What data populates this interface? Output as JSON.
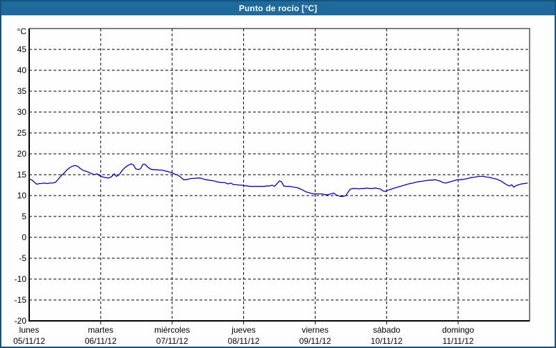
{
  "window": {
    "title": "Punto de rocío [°C]"
  },
  "colors": {
    "titlebar_bg": "#1f6a9d",
    "titlebar_text": "#ffffff",
    "page_border": "#15537e",
    "background": "#fefefe",
    "plot_border": "#000000",
    "grid": "#000000",
    "label_text": "#000000",
    "line": "#0000bb"
  },
  "chart_data": {
    "type": "line",
    "title": "Punto de rocío [°C]",
    "unit_label": "°C",
    "grid": "dashed",
    "legend": "none",
    "y_axis": {
      "min": -20,
      "max": 50,
      "tick_step": 5,
      "tick_labels": [
        45,
        40,
        35,
        30,
        25,
        20,
        15,
        10,
        5,
        0,
        -5,
        -10,
        -15,
        -20
      ]
    },
    "x_axis": {
      "days": [
        {
          "weekday": "lunes",
          "date": "05/11/12"
        },
        {
          "weekday": "martes",
          "date": "06/11/12"
        },
        {
          "weekday": "miércoles",
          "date": "07/11/12"
        },
        {
          "weekday": "jueves",
          "date": "08/11/12"
        },
        {
          "weekday": "viernes",
          "date": "09/11/12"
        },
        {
          "weekday": "sábado",
          "date": "10/11/12"
        },
        {
          "weekday": "domingo",
          "date": "11/11/12"
        }
      ]
    },
    "series": [
      {
        "name": "Punto de rocío",
        "color": "#0000bb",
        "points": [
          [
            0.0,
            14.0
          ],
          [
            0.04,
            13.7
          ],
          [
            0.08,
            13.1
          ],
          [
            0.11,
            12.7
          ],
          [
            0.14,
            12.9
          ],
          [
            0.17,
            12.9
          ],
          [
            0.21,
            13.0
          ],
          [
            0.25,
            12.9
          ],
          [
            0.29,
            13.0
          ],
          [
            0.33,
            13.0
          ],
          [
            0.37,
            13.2
          ],
          [
            0.41,
            14.0
          ],
          [
            0.45,
            14.8
          ],
          [
            0.49,
            15.4
          ],
          [
            0.52,
            16.0
          ],
          [
            0.56,
            16.6
          ],
          [
            0.6,
            17.0
          ],
          [
            0.64,
            17.2
          ],
          [
            0.68,
            17.0
          ],
          [
            0.72,
            16.4
          ],
          [
            0.76,
            16.0
          ],
          [
            0.8,
            15.8
          ],
          [
            0.84,
            15.5
          ],
          [
            0.87,
            15.3
          ],
          [
            0.91,
            15.0
          ],
          [
            0.95,
            15.2
          ],
          [
            0.98,
            14.8
          ],
          [
            1.02,
            14.5
          ],
          [
            1.07,
            14.3
          ],
          [
            1.11,
            14.2
          ],
          [
            1.15,
            14.5
          ],
          [
            1.19,
            15.2
          ],
          [
            1.22,
            14.6
          ],
          [
            1.26,
            15.0
          ],
          [
            1.3,
            16.0
          ],
          [
            1.34,
            16.7
          ],
          [
            1.39,
            17.3
          ],
          [
            1.43,
            17.6
          ],
          [
            1.46,
            17.3
          ],
          [
            1.49,
            16.4
          ],
          [
            1.53,
            16.2
          ],
          [
            1.56,
            16.5
          ],
          [
            1.59,
            17.5
          ],
          [
            1.62,
            17.5
          ],
          [
            1.66,
            16.8
          ],
          [
            1.7,
            16.3
          ],
          [
            1.74,
            16.2
          ],
          [
            1.78,
            16.2
          ],
          [
            1.82,
            16.1
          ],
          [
            1.86,
            16.1
          ],
          [
            1.9,
            15.9
          ],
          [
            1.93,
            15.8
          ],
          [
            1.97,
            15.6
          ],
          [
            2.0,
            15.4
          ],
          [
            2.04,
            15.1
          ],
          [
            2.08,
            14.9
          ],
          [
            2.12,
            14.4
          ],
          [
            2.16,
            13.8
          ],
          [
            2.2,
            13.8
          ],
          [
            2.24,
            14.0
          ],
          [
            2.27,
            14.1
          ],
          [
            2.31,
            14.1
          ],
          [
            2.35,
            14.2
          ],
          [
            2.39,
            14.2
          ],
          [
            2.43,
            14.0
          ],
          [
            2.47,
            13.8
          ],
          [
            2.51,
            13.7
          ],
          [
            2.55,
            13.6
          ],
          [
            2.59,
            13.5
          ],
          [
            2.62,
            13.3
          ],
          [
            2.66,
            13.2
          ],
          [
            2.7,
            13.1
          ],
          [
            2.74,
            13.1
          ],
          [
            2.78,
            12.8
          ],
          [
            2.82,
            13.0
          ],
          [
            2.86,
            12.6
          ],
          [
            2.9,
            12.6
          ],
          [
            2.94,
            12.5
          ],
          [
            2.97,
            12.5
          ],
          [
            3.01,
            12.4
          ],
          [
            3.05,
            12.3
          ],
          [
            3.09,
            12.2
          ],
          [
            3.13,
            12.2
          ],
          [
            3.17,
            12.2
          ],
          [
            3.21,
            12.2
          ],
          [
            3.25,
            12.2
          ],
          [
            3.29,
            12.2
          ],
          [
            3.32,
            12.3
          ],
          [
            3.36,
            12.3
          ],
          [
            3.4,
            12.5
          ],
          [
            3.43,
            12.2
          ],
          [
            3.47,
            12.9
          ],
          [
            3.5,
            13.5
          ],
          [
            3.53,
            13.3
          ],
          [
            3.56,
            12.3
          ],
          [
            3.6,
            12.2
          ],
          [
            3.64,
            12.2
          ],
          [
            3.67,
            12.1
          ],
          [
            3.71,
            12.0
          ],
          [
            3.75,
            11.9
          ],
          [
            3.79,
            11.6
          ],
          [
            3.83,
            11.3
          ],
          [
            3.87,
            10.9
          ],
          [
            3.91,
            10.7
          ],
          [
            3.95,
            10.5
          ],
          [
            3.99,
            10.4
          ],
          [
            4.02,
            10.4
          ],
          [
            4.06,
            10.4
          ],
          [
            4.1,
            10.4
          ],
          [
            4.14,
            10.2
          ],
          [
            4.18,
            10.2
          ],
          [
            4.22,
            10.4
          ],
          [
            4.26,
            10.6
          ],
          [
            4.29,
            10.2
          ],
          [
            4.32,
            10.0
          ],
          [
            4.36,
            9.8
          ],
          [
            4.39,
            9.8
          ],
          [
            4.43,
            10.0
          ],
          [
            4.46,
            10.8
          ],
          [
            4.49,
            11.5
          ],
          [
            4.53,
            11.7
          ],
          [
            4.57,
            11.7
          ],
          [
            4.61,
            11.6
          ],
          [
            4.65,
            11.7
          ],
          [
            4.69,
            11.7
          ],
          [
            4.72,
            11.8
          ],
          [
            4.76,
            11.7
          ],
          [
            4.8,
            11.7
          ],
          [
            4.84,
            11.8
          ],
          [
            4.88,
            11.7
          ],
          [
            4.92,
            11.5
          ],
          [
            4.95,
            11.1
          ],
          [
            4.98,
            11.0
          ],
          [
            5.02,
            11.3
          ],
          [
            5.06,
            11.5
          ],
          [
            5.09,
            11.7
          ],
          [
            5.13,
            11.9
          ],
          [
            5.17,
            12.1
          ],
          [
            5.21,
            12.3
          ],
          [
            5.25,
            12.5
          ],
          [
            5.29,
            12.7
          ],
          [
            5.33,
            12.9
          ],
          [
            5.37,
            13.0
          ],
          [
            5.41,
            13.2
          ],
          [
            5.44,
            13.3
          ],
          [
            5.48,
            13.4
          ],
          [
            5.52,
            13.5
          ],
          [
            5.56,
            13.6
          ],
          [
            5.6,
            13.7
          ],
          [
            5.64,
            13.7
          ],
          [
            5.68,
            13.8
          ],
          [
            5.72,
            13.6
          ],
          [
            5.76,
            13.4
          ],
          [
            5.79,
            13.1
          ],
          [
            5.83,
            13.0
          ],
          [
            5.87,
            13.2
          ],
          [
            5.91,
            13.4
          ],
          [
            5.95,
            13.6
          ],
          [
            5.99,
            13.8
          ],
          [
            6.03,
            13.8
          ],
          [
            6.07,
            13.9
          ],
          [
            6.11,
            14.0
          ],
          [
            6.14,
            14.1
          ],
          [
            6.18,
            14.3
          ],
          [
            6.22,
            14.4
          ],
          [
            6.26,
            14.5
          ],
          [
            6.3,
            14.6
          ],
          [
            6.34,
            14.6
          ],
          [
            6.38,
            14.5
          ],
          [
            6.42,
            14.4
          ],
          [
            6.46,
            14.3
          ],
          [
            6.49,
            14.1
          ],
          [
            6.53,
            14.0
          ],
          [
            6.57,
            13.7
          ],
          [
            6.61,
            13.4
          ],
          [
            6.65,
            12.9
          ],
          [
            6.69,
            12.5
          ],
          [
            6.72,
            12.3
          ],
          [
            6.75,
            12.6
          ],
          [
            6.78,
            12.0
          ],
          [
            6.81,
            12.4
          ],
          [
            6.85,
            12.6
          ],
          [
            6.89,
            12.8
          ],
          [
            6.93,
            12.9
          ],
          [
            6.97,
            13.0
          ]
        ]
      }
    ]
  }
}
